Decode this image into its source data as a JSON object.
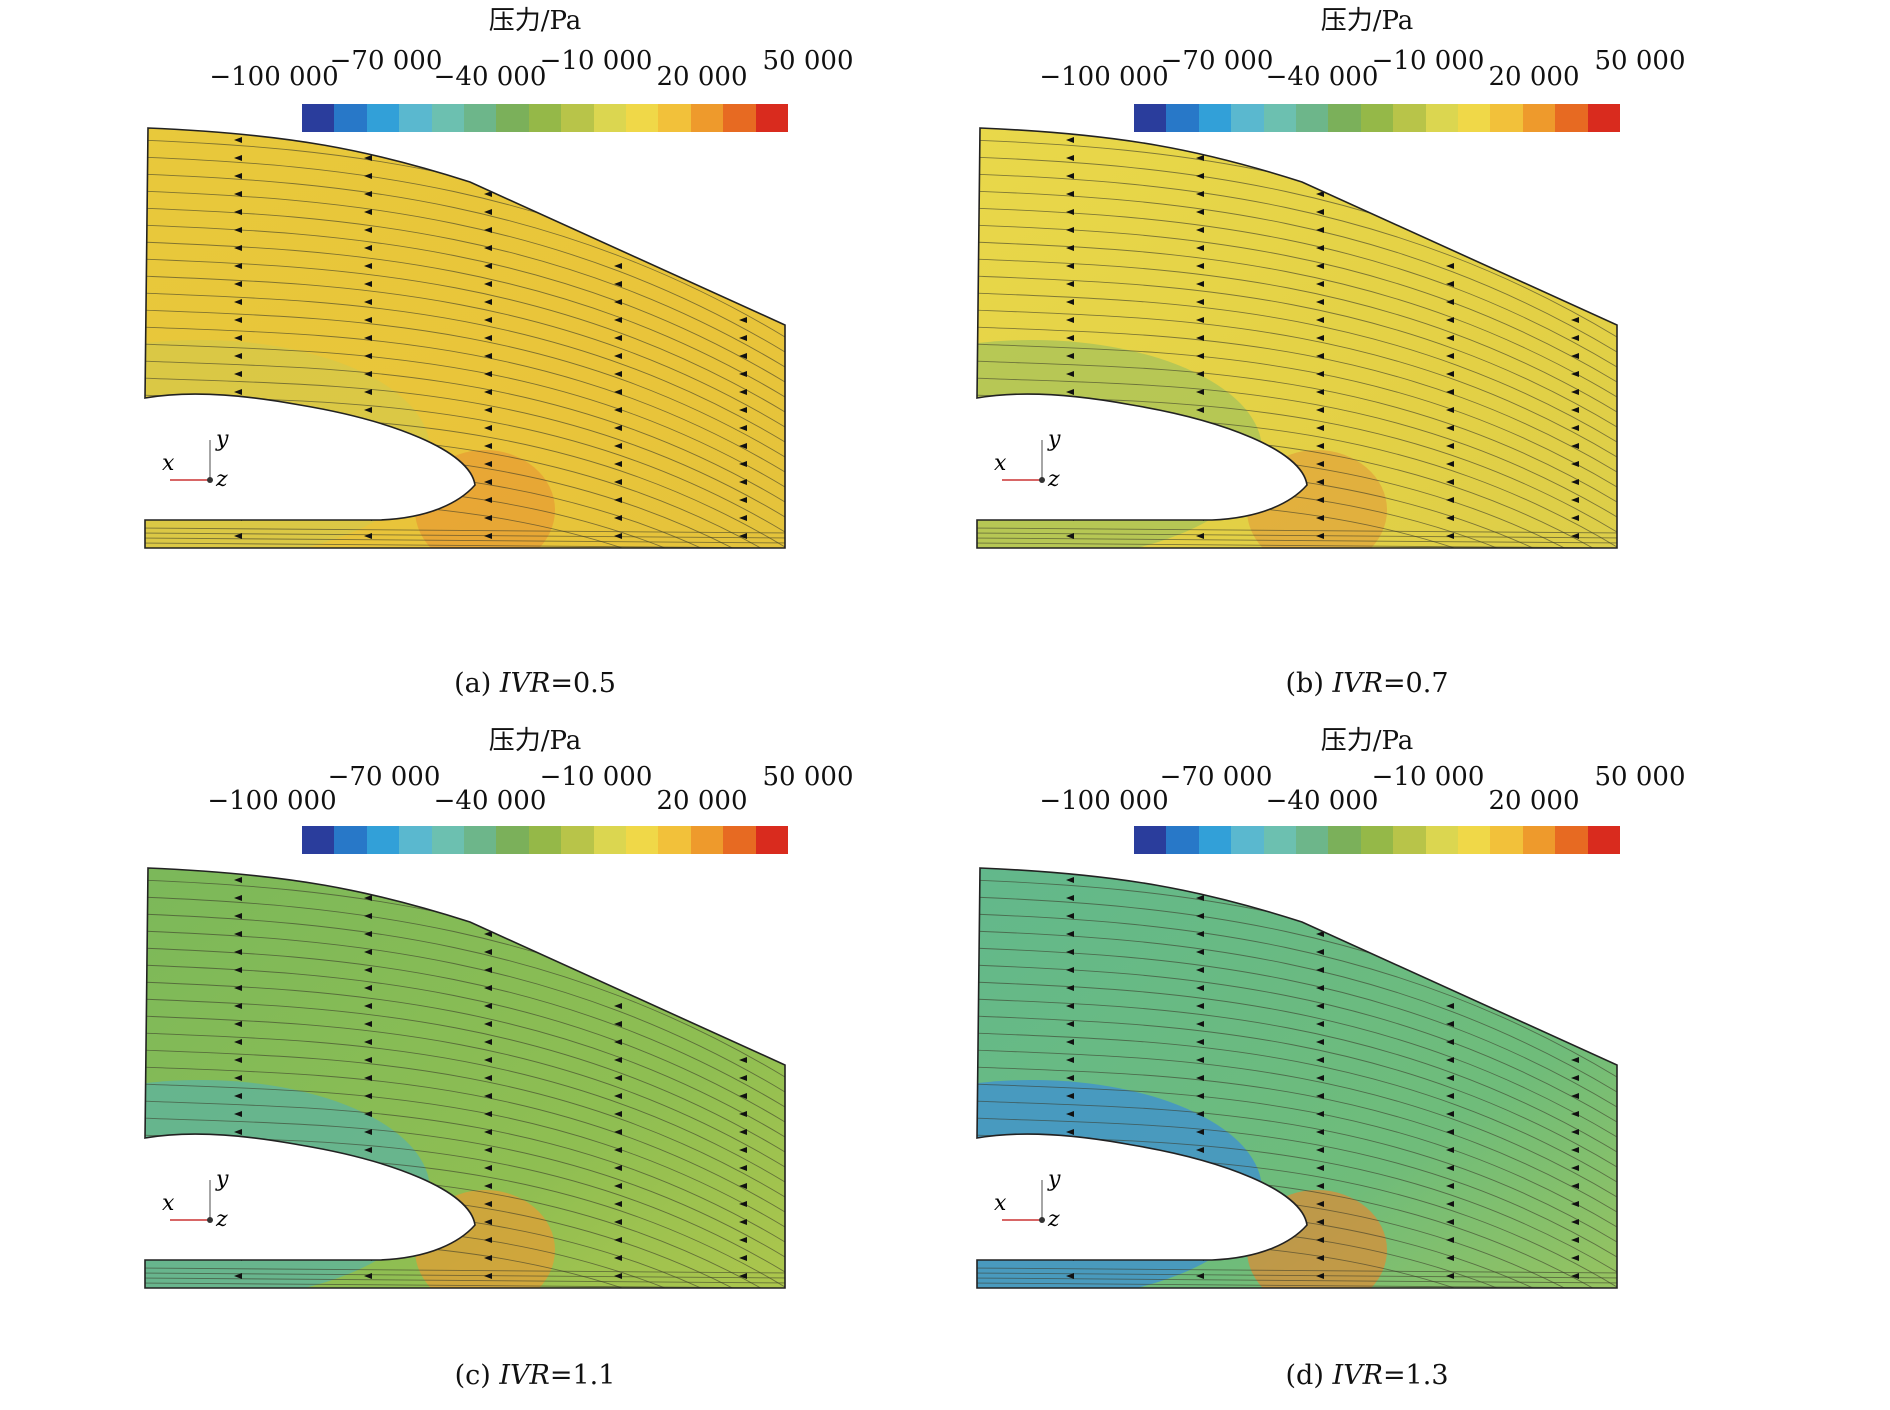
{
  "colorbar": {
    "title": "压力/Pa",
    "ticks": [
      "−100 000",
      "−70 000",
      "−40 000",
      "−10 000",
      "20 000",
      "50 000"
    ],
    "colors": [
      "#2a3d9c",
      "#2878c8",
      "#32a0d8",
      "#5ab8cf",
      "#6cc0b0",
      "#6db68a",
      "#7bb05a",
      "#95b848",
      "#b8c449",
      "#dbd650",
      "#f0d848",
      "#f2c13a",
      "#ee9a2c",
      "#e76a22",
      "#d92b1e"
    ]
  },
  "axes_triad": {
    "x": "x",
    "y": "y",
    "z": "z"
  },
  "panels": [
    {
      "id": "a",
      "caption_prefix": "(a) ",
      "caption_var": "IVR",
      "caption_value": "=0.5"
    },
    {
      "id": "b",
      "caption_prefix": "(b) ",
      "caption_var": "IVR",
      "caption_value": "=0.7"
    },
    {
      "id": "c",
      "caption_prefix": "(c) ",
      "caption_var": "IVR",
      "caption_value": "=1.1"
    },
    {
      "id": "d",
      "caption_prefix": "(d) ",
      "caption_var": "IVR",
      "caption_value": "=1.3"
    }
  ],
  "field_colors": {
    "a": {
      "upper": "#e8c93b",
      "mid": "#e9c43a",
      "low": "#e0c23c",
      "hot": "#e79b33",
      "left": "#d5c84a"
    },
    "b": {
      "upper": "#e9d84a",
      "mid": "#e3d045",
      "low": "#d7cd4c",
      "hot": "#e1a33a",
      "left": "#a7c35a"
    },
    "c": {
      "upper": "#7bb85a",
      "mid": "#8fbe52",
      "low": "#c3cc48",
      "hot": "#e79b33",
      "left": "#5cb3a0"
    },
    "d": {
      "upper": "#62b88c",
      "mid": "#6fbc7a",
      "low": "#b4c84b",
      "hot": "#e08a35",
      "left": "#3d8fd3"
    }
  }
}
